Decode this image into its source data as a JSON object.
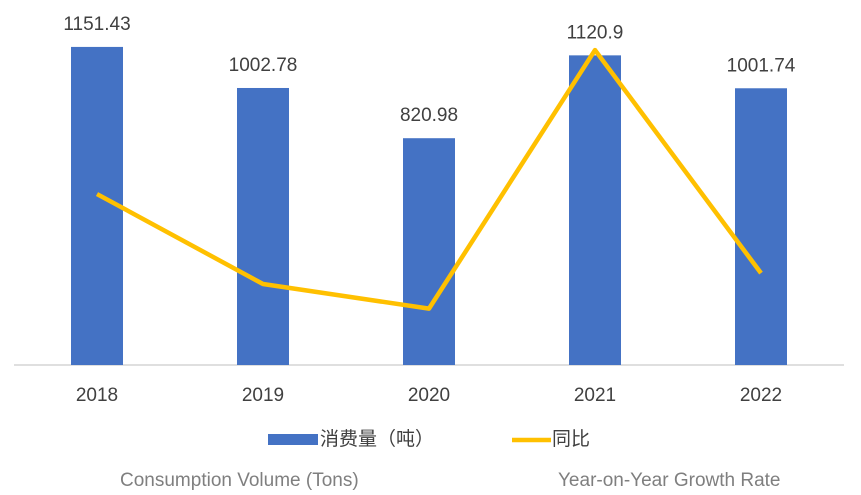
{
  "chart_data": {
    "type": "bar-line",
    "categories": [
      "2018",
      "2019",
      "2020",
      "2021",
      "2022"
    ],
    "series": [
      {
        "name": "消费量（吨）",
        "name_en": "Consumption Volume (Tons)",
        "type": "bar",
        "color": "#4472c4",
        "values": [
          1151.43,
          1002.78,
          820.98,
          1120.9,
          1001.74
        ]
      },
      {
        "name": "同比",
        "name_en": "Year-on-Year Growth Rate",
        "type": "line",
        "axis": "y2",
        "color": "#ffc000",
        "values": [
          6.1,
          -12.9,
          -18.1,
          36.5,
          -10.6
        ]
      }
    ],
    "ylim": [
      0,
      1200
    ],
    "y2lim": [
      -30,
      40
    ],
    "legend": "bottom"
  }
}
